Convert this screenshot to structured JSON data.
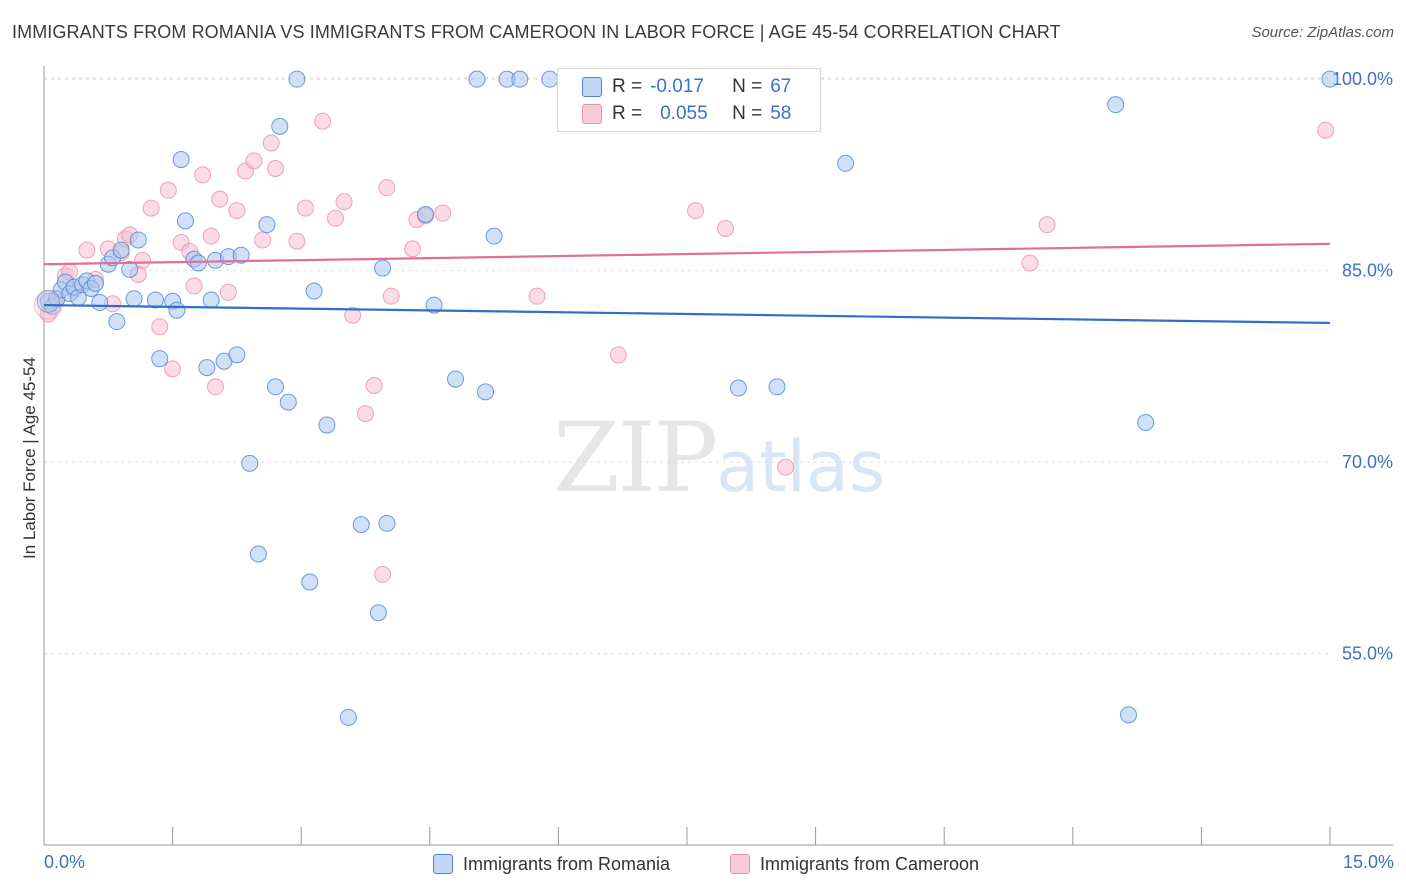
{
  "title": "IMMIGRANTS FROM ROMANIA VS IMMIGRANTS FROM CAMEROON IN LABOR FORCE | AGE 45-54 CORRELATION CHART",
  "source": "Source: ZipAtlas.com",
  "watermark": {
    "zip": "ZIP",
    "atlas": "atlas"
  },
  "colors": {
    "romania_fill": "#aac8f0",
    "romania_stroke": "#4a84d4",
    "romania_line": "#2f6fc8",
    "cameroon_fill": "#f7bed0",
    "cameroon_stroke": "#e890ae",
    "cameroon_line": "#e07096",
    "tick_label": "#3b72c6",
    "grid": "#dddddd"
  },
  "legend_top": {
    "romania": {
      "r_label": "R =",
      "r_value": "-0.017",
      "n_label": "N =",
      "n_value": "67"
    },
    "cameroon": {
      "r_label": "R =",
      "r_value": "0.055",
      "n_label": "N =",
      "n_value": "58"
    }
  },
  "chart_data": {
    "type": "scatter",
    "title": "IMMIGRANTS FROM ROMANIA VS IMMIGRANTS FROM CAMEROON IN LABOR FORCE | AGE 45-54 CORRELATION CHART",
    "xlabel": "",
    "ylabel": "In Labor Force | Age 45-54",
    "xlim": [
      0,
      15
    ],
    "ylim": [
      40,
      101.5
    ],
    "x_tick_labels": [
      "0.0%",
      "15.0%"
    ],
    "y_ticks": [
      55,
      70,
      85,
      100
    ],
    "y_tick_labels": [
      "55.0%",
      "70.0%",
      "85.0%",
      "100.0%"
    ],
    "grid": true,
    "legend_position": "bottom",
    "series": [
      {
        "name": "Immigrants from Romania",
        "trend": {
          "x": [
            0,
            15
          ],
          "y": [
            82.3,
            80.9
          ]
        },
        "points": [
          [
            0.05,
            82.6
          ],
          [
            0.1,
            82.2
          ],
          [
            0.15,
            82.8
          ],
          [
            0.2,
            83.5
          ],
          [
            0.25,
            84.1
          ],
          [
            0.3,
            83.2
          ],
          [
            0.35,
            83.7
          ],
          [
            0.4,
            82.9
          ],
          [
            0.45,
            83.9
          ],
          [
            0.5,
            84.2
          ],
          [
            0.55,
            83.6
          ],
          [
            0.6,
            84.0
          ],
          [
            0.65,
            82.5
          ],
          [
            0.75,
            85.5
          ],
          [
            0.8,
            86.0
          ],
          [
            0.85,
            81.0
          ],
          [
            0.9,
            86.6
          ],
          [
            1.0,
            85.1
          ],
          [
            1.05,
            82.8
          ],
          [
            1.1,
            87.4
          ],
          [
            1.3,
            82.7
          ],
          [
            1.35,
            78.1
          ],
          [
            1.5,
            82.6
          ],
          [
            1.55,
            81.9
          ],
          [
            1.6,
            93.7
          ],
          [
            1.65,
            88.9
          ],
          [
            1.75,
            85.9
          ],
          [
            1.8,
            85.6
          ],
          [
            1.9,
            77.4
          ],
          [
            1.95,
            82.7
          ],
          [
            2.0,
            85.8
          ],
          [
            2.1,
            77.9
          ],
          [
            2.15,
            86.1
          ],
          [
            2.25,
            78.4
          ],
          [
            2.3,
            86.2
          ],
          [
            2.4,
            69.9
          ],
          [
            2.5,
            62.8
          ],
          [
            2.6,
            88.6
          ],
          [
            2.7,
            75.9
          ],
          [
            2.75,
            96.3
          ],
          [
            2.85,
            74.7
          ],
          [
            2.95,
            100.0
          ],
          [
            3.1,
            60.6
          ],
          [
            3.15,
            83.4
          ],
          [
            3.3,
            72.9
          ],
          [
            3.55,
            50.0
          ],
          [
            3.7,
            65.1
          ],
          [
            3.9,
            58.2
          ],
          [
            3.95,
            85.2
          ],
          [
            4.0,
            65.2
          ],
          [
            4.45,
            89.4
          ],
          [
            4.55,
            82.3
          ],
          [
            4.8,
            76.5
          ],
          [
            5.05,
            100.0
          ],
          [
            5.15,
            75.5
          ],
          [
            5.25,
            87.7
          ],
          [
            5.4,
            100.0
          ],
          [
            5.55,
            100.0
          ],
          [
            5.9,
            100.0
          ],
          [
            8.1,
            75.8
          ],
          [
            8.55,
            75.9
          ],
          [
            9.35,
            93.4
          ],
          [
            12.5,
            98.0
          ],
          [
            12.65,
            50.2
          ],
          [
            12.85,
            73.1
          ],
          [
            15.0,
            100.0
          ]
        ]
      },
      {
        "name": "Immigrants from Cameroon",
        "trend": {
          "x": [
            0,
            15
          ],
          "y": [
            85.5,
            87.1
          ]
        },
        "points": [
          [
            0.05,
            81.6
          ],
          [
            0.15,
            82.8
          ],
          [
            0.25,
            84.6
          ],
          [
            0.3,
            84.9
          ],
          [
            0.35,
            83.5
          ],
          [
            0.5,
            86.6
          ],
          [
            0.6,
            84.3
          ],
          [
            0.75,
            86.7
          ],
          [
            0.8,
            82.4
          ],
          [
            0.9,
            86.4
          ],
          [
            0.95,
            87.5
          ],
          [
            1.0,
            87.8
          ],
          [
            1.1,
            84.7
          ],
          [
            1.15,
            85.8
          ],
          [
            1.25,
            89.9
          ],
          [
            1.35,
            80.6
          ],
          [
            1.45,
            91.3
          ],
          [
            1.5,
            77.3
          ],
          [
            1.6,
            87.2
          ],
          [
            1.7,
            86.5
          ],
          [
            1.75,
            83.8
          ],
          [
            1.85,
            92.5
          ],
          [
            1.95,
            87.7
          ],
          [
            2.0,
            75.9
          ],
          [
            2.05,
            90.6
          ],
          [
            2.15,
            83.3
          ],
          [
            2.25,
            89.7
          ],
          [
            2.35,
            92.8
          ],
          [
            2.45,
            93.6
          ],
          [
            2.55,
            87.4
          ],
          [
            2.65,
            95.0
          ],
          [
            2.7,
            93.0
          ],
          [
            2.95,
            87.3
          ],
          [
            3.05,
            89.9
          ],
          [
            3.25,
            96.7
          ],
          [
            3.4,
            89.1
          ],
          [
            3.5,
            90.4
          ],
          [
            3.6,
            81.5
          ],
          [
            3.75,
            73.8
          ],
          [
            3.85,
            76.0
          ],
          [
            3.95,
            61.2
          ],
          [
            4.0,
            91.5
          ],
          [
            4.05,
            83.0
          ],
          [
            4.3,
            86.7
          ],
          [
            4.35,
            89.0
          ],
          [
            4.45,
            89.3
          ],
          [
            4.65,
            89.5
          ],
          [
            5.75,
            83.0
          ],
          [
            6.7,
            78.4
          ],
          [
            7.6,
            89.7
          ],
          [
            7.95,
            88.3
          ],
          [
            8.65,
            69.6
          ],
          [
            11.5,
            85.6
          ],
          [
            11.7,
            88.6
          ],
          [
            14.95,
            96.0
          ]
        ]
      }
    ]
  }
}
